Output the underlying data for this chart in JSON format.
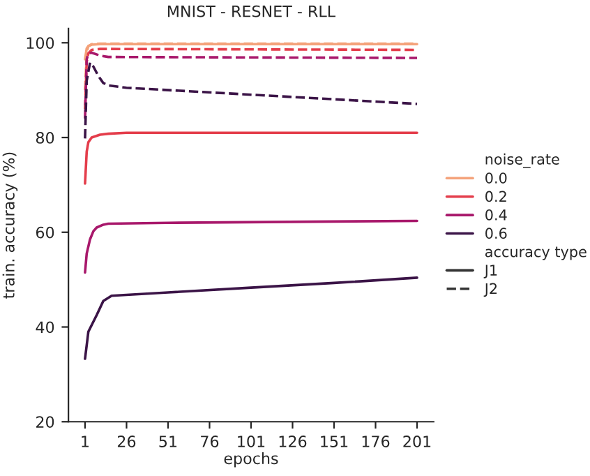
{
  "chart_data": {
    "type": "line",
    "title": "MNIST - RESNET - RLL",
    "xlabel": "epochs",
    "ylabel": "train. accuracy (%)",
    "legend_title": "noise_rate",
    "xlim": [
      -9,
      211
    ],
    "xticks": [
      1,
      26,
      51,
      76,
      101,
      126,
      151,
      176,
      201
    ],
    "ylim": [
      20,
      103
    ],
    "yticks": [
      20,
      40,
      60,
      80,
      100
    ],
    "grid": false,
    "legend": "right",
    "marker": "none",
    "annotations": [
      "accuracy type",
      "J1",
      "J2"
    ],
    "series": [
      {
        "name": "0.0",
        "color": "#f4a27a",
        "line_style": "solid",
        "x": [
          1,
          2,
          3,
          5,
          10,
          26,
          201
        ],
        "values": [
          96.5,
          98.8,
          99.3,
          99.6,
          99.7,
          99.7,
          99.7
        ]
      },
      {
        "name": "0.2",
        "color": "#e43d4b",
        "line_style": "solid",
        "x": [
          1,
          2,
          3,
          5,
          10,
          15,
          26,
          201
        ],
        "values": [
          70.3,
          77,
          79,
          80,
          80.6,
          80.8,
          81,
          81
        ]
      },
      {
        "name": "0.4",
        "color": "#a8186b",
        "line_style": "solid",
        "x": [
          1,
          2,
          4,
          6,
          8,
          12,
          15,
          51,
          201
        ],
        "values": [
          51.5,
          55.5,
          58.5,
          60.2,
          61,
          61.6,
          61.8,
          62,
          62.4
        ]
      },
      {
        "name": "0.6",
        "color": "#3b1447",
        "line_style": "solid",
        "x": [
          1,
          3,
          8,
          12,
          17,
          51,
          101,
          151,
          201
        ],
        "values": [
          33.3,
          39,
          42.5,
          45.5,
          46.6,
          47.3,
          48.3,
          49.3,
          50.4
        ]
      },
      {
        "color": "#f4a27a",
        "line_style": "dashed",
        "x": [
          1,
          2,
          3,
          5,
          10,
          201
        ],
        "values": [
          90,
          98,
          99.3,
          99.7,
          99.8,
          99.8
        ]
      },
      {
        "color": "#e43d4b",
        "line_style": "dashed",
        "x": [
          1,
          2,
          3,
          5,
          10,
          201
        ],
        "values": [
          86,
          96,
          97.8,
          98.5,
          98.7,
          98.5
        ]
      },
      {
        "color": "#a8186b",
        "line_style": "dashed",
        "x": [
          1,
          2,
          3,
          5,
          10,
          15,
          201
        ],
        "values": [
          84,
          96.5,
          97.8,
          97.9,
          97.3,
          97,
          96.8
        ]
      },
      {
        "color": "#3b1447",
        "line_style": "dashed",
        "x": [
          1,
          2,
          4,
          6,
          9,
          12,
          15,
          26,
          201
        ],
        "values": [
          79.8,
          92,
          95.8,
          95,
          93,
          91.5,
          91,
          90.5,
          87.1
        ]
      }
    ]
  }
}
